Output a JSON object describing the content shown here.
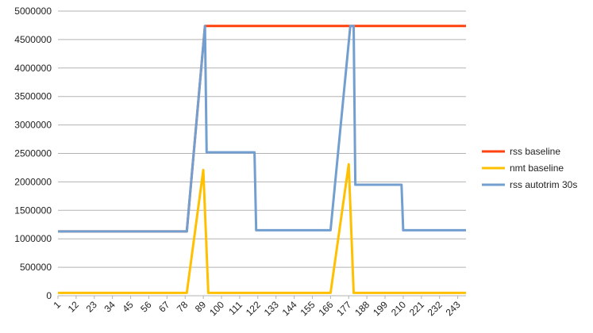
{
  "chart_data": {
    "type": "line",
    "title": "",
    "xlabel": "",
    "ylabel": "",
    "ylim": [
      0,
      5000000
    ],
    "ytick_step": 500000,
    "yticks": [
      "0",
      "500000",
      "1000000",
      "1500000",
      "2000000",
      "2500000",
      "3000000",
      "3500000",
      "4000000",
      "4500000",
      "5000000"
    ],
    "xlim": [
      1,
      248
    ],
    "xtick_labels": [
      "1",
      "12",
      "23",
      "34",
      "45",
      "56",
      "67",
      "78",
      "89",
      "100",
      "111",
      "122",
      "133",
      "144",
      "155",
      "166",
      "177",
      "188",
      "199",
      "210",
      "221",
      "232",
      "243"
    ],
    "grid": "horizontal",
    "legend_position": "right",
    "series": [
      {
        "name": "rss baseline",
        "color": "#ff420e",
        "points": [
          [
            1,
            1130000
          ],
          [
            79,
            1130000
          ],
          [
            90,
            4740000
          ],
          [
            248,
            4740000
          ]
        ]
      },
      {
        "name": "nmt baseline",
        "color": "#ffc000",
        "points": [
          [
            1,
            50000
          ],
          [
            79,
            50000
          ],
          [
            89,
            2210000
          ],
          [
            92,
            50000
          ],
          [
            166,
            50000
          ],
          [
            177,
            2310000
          ],
          [
            180,
            50000
          ],
          [
            248,
            50000
          ]
        ]
      },
      {
        "name": "rss autotrim 30s",
        "color": "#729fcf",
        "points": [
          [
            1,
            1130000
          ],
          [
            79,
            1130000
          ],
          [
            90,
            4740000
          ],
          [
            91,
            2520000
          ],
          [
            120,
            2520000
          ],
          [
            121,
            1150000
          ],
          [
            166,
            1150000
          ],
          [
            178,
            4740000
          ],
          [
            180,
            4740000
          ],
          [
            181,
            1950000
          ],
          [
            209,
            1950000
          ],
          [
            210,
            1150000
          ],
          [
            248,
            1150000
          ]
        ]
      }
    ]
  }
}
